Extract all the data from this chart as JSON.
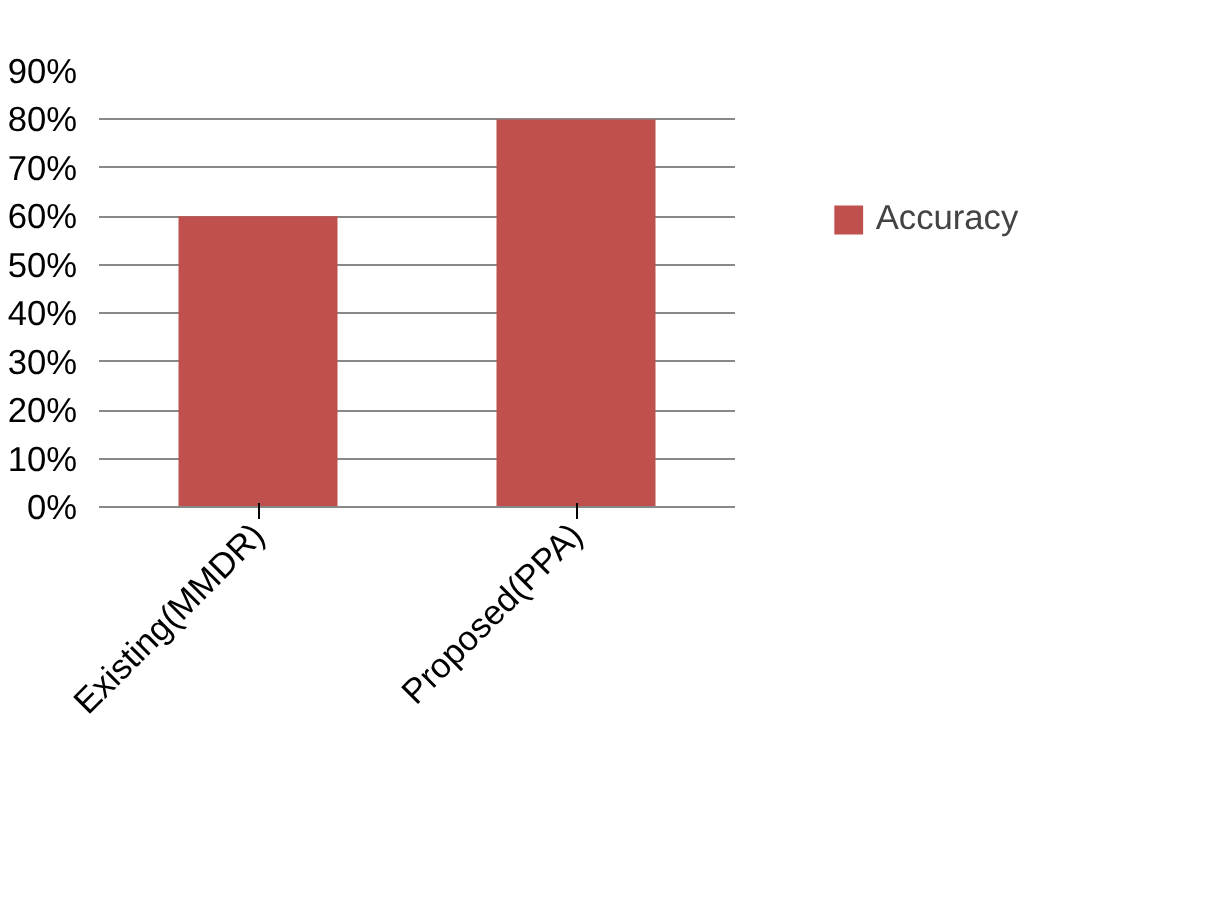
{
  "chart_data": {
    "type": "bar",
    "categories": [
      "Existing(MMDR)",
      "Proposed(PPA)"
    ],
    "series": [
      {
        "name": "Accuracy",
        "color": "#c0504d",
        "values": [
          60,
          80
        ]
      }
    ],
    "ylim": [
      0,
      90
    ],
    "yticks": [
      {
        "value": 0,
        "label": "0%"
      },
      {
        "value": 10,
        "label": "10%"
      },
      {
        "value": 20,
        "label": "20%"
      },
      {
        "value": 30,
        "label": "30%"
      },
      {
        "value": 40,
        "label": "40%"
      },
      {
        "value": 50,
        "label": "50%"
      },
      {
        "value": 60,
        "label": "60%"
      },
      {
        "value": 70,
        "label": "70%"
      },
      {
        "value": 80,
        "label": "80%"
      },
      {
        "value": 90,
        "label": "90%"
      }
    ],
    "grid": "y",
    "legend": "right"
  }
}
